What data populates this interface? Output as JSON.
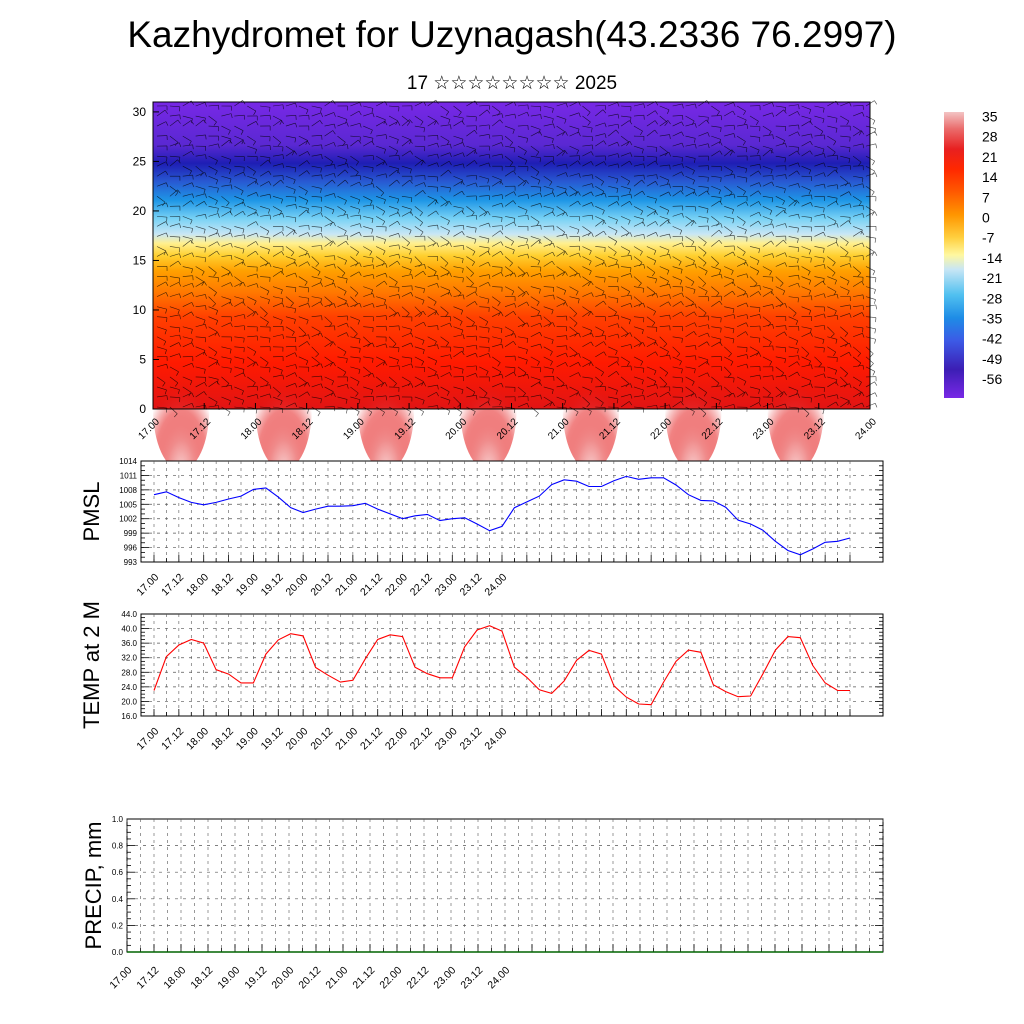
{
  "title": "Kazhydromet for Uzynagash(43.2336 76.2997)",
  "subtitle": "17 ☆☆☆☆☆☆☆☆ 2025",
  "colors": {
    "pmsl_line": "#0000ff",
    "temp_line": "#ff0000",
    "precip_line": "#006400",
    "frame": "#000000",
    "grid": "#555555"
  },
  "chart_data": [
    {
      "type": "heatmap",
      "name": "cross-section",
      "x_tick_labels": [
        "17.00",
        "17.12",
        "18.00",
        "18.12",
        "19.00",
        "19.12",
        "20.00",
        "20.12",
        "21.00",
        "21.12",
        "22.00",
        "22.12",
        "23.00",
        "23.12",
        "24.00"
      ],
      "ylim": [
        0,
        31
      ],
      "y_ticks": [
        0,
        5,
        10,
        15,
        20,
        25,
        30
      ],
      "y_tick_labels": [
        "0",
        "5",
        "10",
        "15",
        "20",
        "25",
        "30"
      ],
      "colorbar": {
        "labels": [
          "35",
          "28",
          "21",
          "14",
          "7",
          "0",
          "-7",
          "-14",
          "-21",
          "-28",
          "-35",
          "-42",
          "-49",
          "-56"
        ],
        "colors": [
          "#f3b8b8",
          "#ea6a6a",
          "#e82020",
          "#ff3000",
          "#ff5a00",
          "#ff8c00",
          "#ffb400",
          "#ffe040",
          "#fff8a0",
          "#c8e6f5",
          "#60c8f0",
          "#1e96e6",
          "#3c5ae6",
          "#3c1eb4",
          "#7828e6"
        ]
      },
      "fields": "temperature shading with wind barbs"
    },
    {
      "type": "line",
      "name": "pmsl",
      "ylabel": "PMSL",
      "ylim": [
        993,
        1014
      ],
      "y_ticks": [
        993,
        996,
        999,
        1002,
        1005,
        1008,
        1011,
        1014
      ],
      "y_tick_labels": [
        "993",
        "996",
        "999",
        "1002",
        "1005",
        "1008",
        "1011",
        "1014"
      ],
      "x_tick_labels": [
        "17.00",
        "17.12",
        "18.00",
        "18.12",
        "19.00",
        "19.12",
        "20.00",
        "20.12",
        "21.00",
        "21.12",
        "22.00",
        "22.12",
        "23.00",
        "23.12",
        "24.00"
      ],
      "x_step_hours": 3,
      "series": [
        {
          "values": [
            1007.0,
            1007.6,
            1006.4,
            1005.4,
            1004.9,
            1005.4,
            1006.1,
            1006.7,
            1008.1,
            1008.4,
            1006.5,
            1004.3,
            1003.3,
            1004.0,
            1004.6,
            1004.6,
            1004.7,
            1005.2,
            1004.0,
            1003.0,
            1002.0,
            1002.6,
            1002.9,
            1001.6,
            1002.0,
            1002.2,
            1000.9,
            999.5,
            1000.4,
            1004.3,
            1005.5,
            1006.7,
            1009.1,
            1010.1,
            1009.8,
            1008.7,
            1008.7,
            1009.9,
            1010.8,
            1010.2,
            1010.5,
            1010.5,
            1009.0,
            1007.0,
            1005.8,
            1005.7,
            1004.4,
            1001.7,
            1000.9,
            999.6,
            997.3,
            995.4,
            994.5,
            995.7,
            997.1,
            997.3,
            998.0
          ]
        }
      ]
    },
    {
      "type": "line",
      "name": "temperature",
      "ylabel": "TEMP at 2 M",
      "ylim": [
        16.0,
        44.0
      ],
      "y_ticks": [
        16,
        20,
        24,
        28,
        32,
        36,
        40,
        44
      ],
      "y_tick_labels": [
        "16.0",
        "20.0",
        "24.0",
        "28.0",
        "32.0",
        "36.0",
        "40.0",
        "44.0"
      ],
      "x_tick_labels": [
        "17.00",
        "17.12",
        "18.00",
        "18.12",
        "19.00",
        "19.12",
        "20.00",
        "20.12",
        "21.00",
        "21.12",
        "22.00",
        "22.12",
        "23.00",
        "23.12",
        "24.00"
      ],
      "x_step_hours": 3,
      "series": [
        {
          "values": [
            23.0,
            32.3,
            35.5,
            37.0,
            36.0,
            28.7,
            27.5,
            25.1,
            25.1,
            33.0,
            36.9,
            38.6,
            38.0,
            29.3,
            27.2,
            25.3,
            25.8,
            31.7,
            37.0,
            38.3,
            37.8,
            29.4,
            27.6,
            26.5,
            26.5,
            35.0,
            39.6,
            40.8,
            39.3,
            29.4,
            26.6,
            23.2,
            22.2,
            25.6,
            31.3,
            34.0,
            33.0,
            24.3,
            21.2,
            19.3,
            19.1,
            25.3,
            31.0,
            34.1,
            33.5,
            24.6,
            22.7,
            21.3,
            21.5,
            27.6,
            34.1,
            37.8,
            37.5,
            29.9,
            25.1,
            23.0,
            23.0
          ]
        }
      ]
    },
    {
      "type": "line",
      "name": "precipitation",
      "ylabel": "PRECIP, mm",
      "ylim": [
        0.0,
        1.0
      ],
      "y_ticks": [
        0.0,
        0.2,
        0.4,
        0.6,
        0.8,
        1.0
      ],
      "y_tick_labels": [
        "0.0",
        "0.2",
        "0.4",
        "0.6",
        "0.8",
        "1.0"
      ],
      "x_tick_labels": [
        "17.00",
        "17.12",
        "18.00",
        "18.12",
        "19.00",
        "19.12",
        "20.00",
        "20.12",
        "21.00",
        "21.12",
        "22.00",
        "22.12",
        "23.00",
        "23.12",
        "24.00"
      ],
      "x_step_hours": 3,
      "series": [
        {
          "values": [
            0,
            0,
            0,
            0,
            0,
            0,
            0,
            0,
            0,
            0,
            0,
            0,
            0,
            0,
            0,
            0,
            0,
            0,
            0,
            0,
            0,
            0,
            0,
            0,
            0,
            0,
            0,
            0,
            0,
            0,
            0,
            0,
            0,
            0,
            0,
            0,
            0,
            0,
            0,
            0,
            0,
            0,
            0,
            0,
            0,
            0,
            0,
            0,
            0,
            0,
            0,
            0,
            0,
            0,
            0,
            0,
            0
          ]
        }
      ]
    }
  ]
}
